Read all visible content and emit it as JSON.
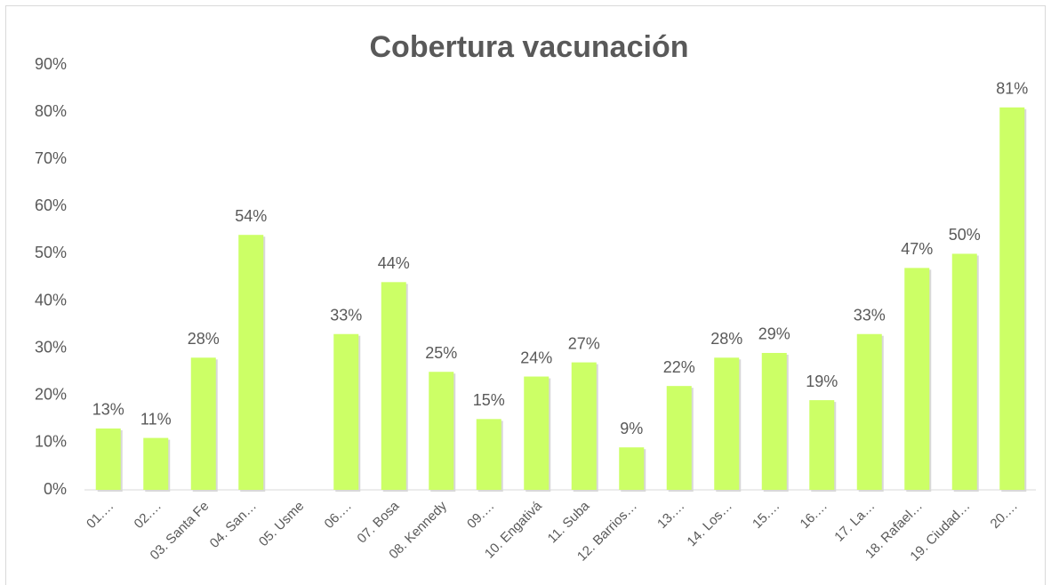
{
  "chart_data": {
    "type": "bar",
    "title": "Cobertura vacunación",
    "categories": [
      "01.…",
      "02.…",
      "03. Santa Fe",
      "04. San…",
      "05. Usme",
      "06.…",
      "07. Bosa",
      "08. Kennedy",
      "09.…",
      "10. Engativá",
      "11. Suba",
      "12. Barrios…",
      "13.…",
      "14. Los…",
      "15.…",
      "16.…",
      "17. La…",
      "18. Rafael…",
      "19. Ciudad…",
      "20.…"
    ],
    "values": [
      13,
      11,
      28,
      54,
      null,
      33,
      44,
      25,
      15,
      24,
      27,
      9,
      22,
      28,
      29,
      19,
      33,
      47,
      50,
      81
    ],
    "value_labels": [
      "13%",
      "11%",
      "28%",
      "54%",
      null,
      "33%",
      "44%",
      "25%",
      "15%",
      "24%",
      "27%",
      "9%",
      "22%",
      "28%",
      "29%",
      "19%",
      "33%",
      "47%",
      "50%",
      "81%"
    ],
    "color": "#ccff66",
    "ylim": [
      0,
      90
    ],
    "yticks": [
      {
        "value": 0,
        "label": "0%"
      },
      {
        "value": 10,
        "label": "10%"
      },
      {
        "value": 20,
        "label": "20%"
      },
      {
        "value": 30,
        "label": "30%"
      },
      {
        "value": 40,
        "label": "40%"
      },
      {
        "value": 50,
        "label": "50%"
      },
      {
        "value": 60,
        "label": "60%"
      },
      {
        "value": 70,
        "label": "70%"
      },
      {
        "value": 80,
        "label": "80%"
      },
      {
        "value": 90,
        "label": "90%"
      }
    ],
    "grid": false
  }
}
